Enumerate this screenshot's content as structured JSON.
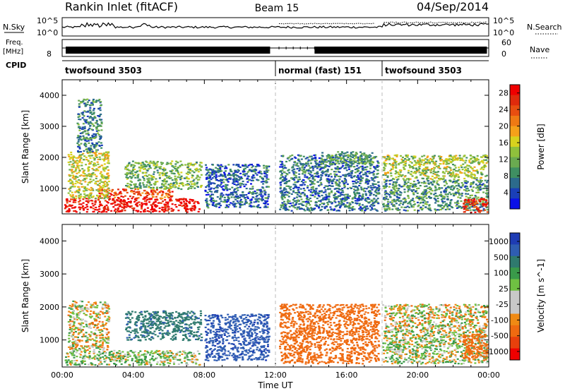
{
  "header": {
    "station": "Rankin Inlet (fitACF)",
    "beam": "Beam 15",
    "date": "04/Sep/2014"
  },
  "aux": {
    "nsky_label": "N.Sky",
    "nsearch_label": "N.Search",
    "nsky_ticks": [
      "10^5",
      "10^0"
    ],
    "freq_label": "Freq.",
    "freq_unit": "[MHz]",
    "freq_ticks": [
      "8"
    ],
    "nave_label": "Nave",
    "nave_ticks": [
      "60",
      "0"
    ],
    "cpid_label": "CPID",
    "cpid_segments": [
      {
        "label": "twofsound 3503",
        "start_h": 0,
        "end_h": 12
      },
      {
        "label": "normal (fast) 151",
        "start_h": 12,
        "end_h": 18
      },
      {
        "label": "twofsound 3503",
        "start_h": 18,
        "end_h": 24
      }
    ]
  },
  "chart_data": [
    {
      "type": "heatmap",
      "name": "power",
      "xlabel": "",
      "ylabel": "Slant Range [km]",
      "xlim": [
        0,
        24
      ],
      "ylim": [
        180,
        4500
      ],
      "yticks": [
        1000,
        2000,
        3000,
        4000
      ],
      "colorbar": {
        "label": "Power [dB]",
        "ticks": [
          4,
          8,
          12,
          16,
          20,
          24,
          28
        ],
        "range": [
          0,
          30
        ],
        "colors": [
          "#0a10e8",
          "#1a3fb8",
          "#2c6b8c",
          "#3f8f62",
          "#6aaa50",
          "#8fc03c",
          "#d7d21e",
          "#f5a11a",
          "#ef7a14",
          "#e84e10",
          "#e02a0c",
          "#f00000"
        ]
      },
      "regions": [
        {
          "t0": 0.1,
          "t1": 7.7,
          "r0": 260,
          "r1": 700,
          "level": 29
        },
        {
          "t0": 2.0,
          "t1": 6.2,
          "r0": 700,
          "r1": 1000,
          "level": 24
        },
        {
          "t0": 0.3,
          "t1": 2.6,
          "r0": 700,
          "r1": 2200,
          "level": 15
        },
        {
          "t0": 3.5,
          "t1": 7.8,
          "r0": 1000,
          "r1": 1900,
          "level": 12
        },
        {
          "t0": 0.8,
          "t1": 2.2,
          "r0": 2200,
          "r1": 3900,
          "level": 8
        },
        {
          "t0": 8.0,
          "t1": 11.6,
          "r0": 400,
          "r1": 1800,
          "level": 6
        },
        {
          "t0": 12.2,
          "t1": 17.8,
          "r0": 300,
          "r1": 2100,
          "level": 7
        },
        {
          "t0": 14.5,
          "t1": 17.5,
          "r0": 1800,
          "r1": 2200,
          "level": 10
        },
        {
          "t0": 18.0,
          "t1": 23.9,
          "r0": 1300,
          "r1": 2100,
          "level": 14
        },
        {
          "t0": 18.0,
          "t1": 23.9,
          "r0": 300,
          "r1": 1300,
          "level": 9
        },
        {
          "t0": 22.5,
          "t1": 23.9,
          "r0": 250,
          "r1": 700,
          "level": 27
        }
      ]
    },
    {
      "type": "heatmap",
      "name": "velocity",
      "xlabel": "Time UT",
      "ylabel": "Slant Range [km]",
      "xlim": [
        0,
        24
      ],
      "ylim": [
        180,
        4500
      ],
      "xticks": [
        "00:00",
        "04:00",
        "08:00",
        "12:00",
        "16:00",
        "20:00",
        "00:00"
      ],
      "yticks": [
        1000,
        2000,
        3000,
        4000
      ],
      "colorbar": {
        "label": "Velocity [m s^-1]",
        "ticks": [
          "1000",
          "500",
          "100",
          "25",
          "-25",
          "-100",
          "-500",
          "-1000"
        ],
        "colors": [
          "#1e3cb4",
          "#2f5db2",
          "#2f7a6e",
          "#3a9a4a",
          "#6fc042",
          "#c8c8c8",
          "#c8c8c8",
          "#f08a14",
          "#ef6a10",
          "#e8400c",
          "#f00000"
        ]
      },
      "regions": [
        {
          "t0": 0.1,
          "t1": 7.7,
          "r0": 260,
          "r1": 700,
          "vel": 60
        },
        {
          "t0": 0.3,
          "t1": 2.6,
          "r0": 700,
          "r1": 2200,
          "vel": 0
        },
        {
          "t0": 3.5,
          "t1": 7.8,
          "r0": 1000,
          "r1": 1900,
          "vel": 400
        },
        {
          "t0": 8.0,
          "t1": 11.6,
          "r0": 400,
          "r1": 1800,
          "vel": 700
        },
        {
          "t0": 12.2,
          "t1": 17.8,
          "r0": 300,
          "r1": 2100,
          "vel": -300
        },
        {
          "t0": 18.0,
          "t1": 23.9,
          "r0": 1300,
          "r1": 2100,
          "vel": 0
        },
        {
          "t0": 18.0,
          "t1": 23.9,
          "r0": 300,
          "r1": 1300,
          "vel": 50
        },
        {
          "t0": 22.5,
          "t1": 23.9,
          "r0": 400,
          "r1": 1200,
          "vel": -250
        }
      ]
    }
  ]
}
